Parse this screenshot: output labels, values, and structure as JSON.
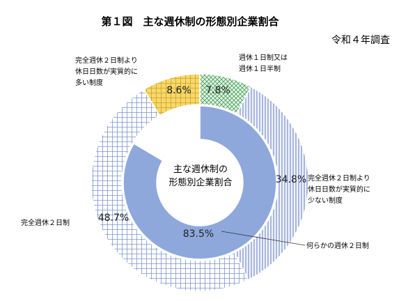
{
  "chart_data": {
    "type": "pie",
    "title": "第１図　主な週休制の形態別企業割合",
    "subtitle": "令和４年調査",
    "center_label": [
      "主な週休制の",
      "形態別企業割合"
    ],
    "outer_ring": [
      {
        "label": [
          "週休１日制又は",
          "週休１日半制"
        ],
        "value": 7.8,
        "value_label": "7.8%",
        "color": "#dcf0dc",
        "pattern": "cross-green"
      },
      {
        "label": [
          "完全週休２日制より",
          "休日日数が実質的に",
          "少ない制度"
        ],
        "value": 34.8,
        "value_label": "34.8%",
        "color": "#e7ebf8",
        "pattern": "vertical-blue"
      },
      {
        "label": [
          "完全週休２日制"
        ],
        "value": 48.7,
        "value_label": "48.7%",
        "color": "#ecf0f8",
        "pattern": "grid-blue"
      },
      {
        "label": [
          "完全週休２日制より",
          "休日日数が実質的に",
          "多い制度"
        ],
        "value": 8.6,
        "value_label": "8.6%",
        "color": "#f8d870",
        "pattern": "grid-yellow"
      }
    ],
    "inner_ring": [
      {
        "label": [
          "何らかの週休２日制"
        ],
        "value": 83.5,
        "value_label": "83.5%",
        "color": "#8ea8dc"
      },
      {
        "label": [],
        "value": 16.5,
        "value_label": "",
        "color": "#ffffff"
      }
    ]
  }
}
